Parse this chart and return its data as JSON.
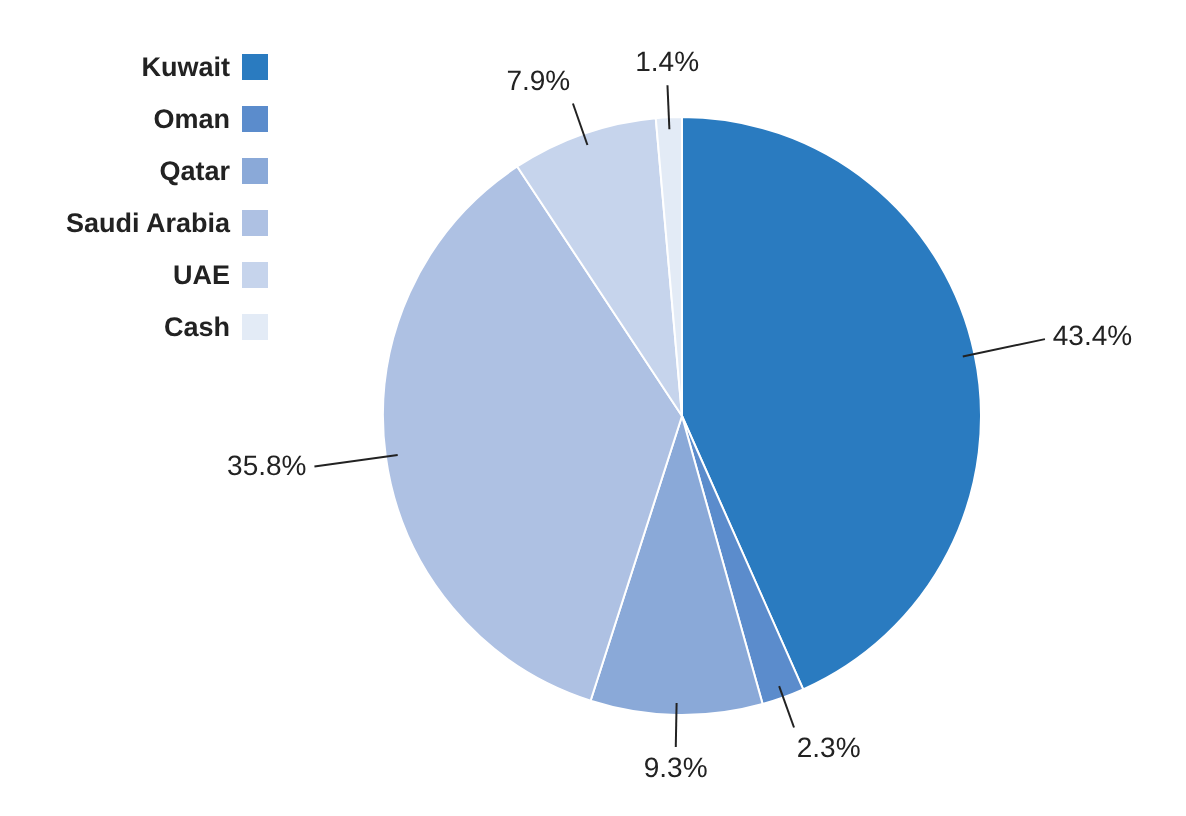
{
  "chart_data": {
    "type": "pie",
    "categories": [
      "Kuwait",
      "Oman",
      "Qatar",
      "Saudi Arabia",
      "UAE",
      "Cash"
    ],
    "values": [
      43.4,
      2.3,
      9.3,
      35.8,
      7.9,
      1.4
    ],
    "colors": [
      "#2a7bc0",
      "#5b8ccc",
      "#8aa9d8",
      "#aec1e3",
      "#c6d4ec",
      "#e3ebf6"
    ],
    "value_labels": [
      "43.4%",
      "2.3%",
      "9.3%",
      "35.8%",
      "7.9%",
      "1.4%"
    ],
    "legend": "top left"
  }
}
